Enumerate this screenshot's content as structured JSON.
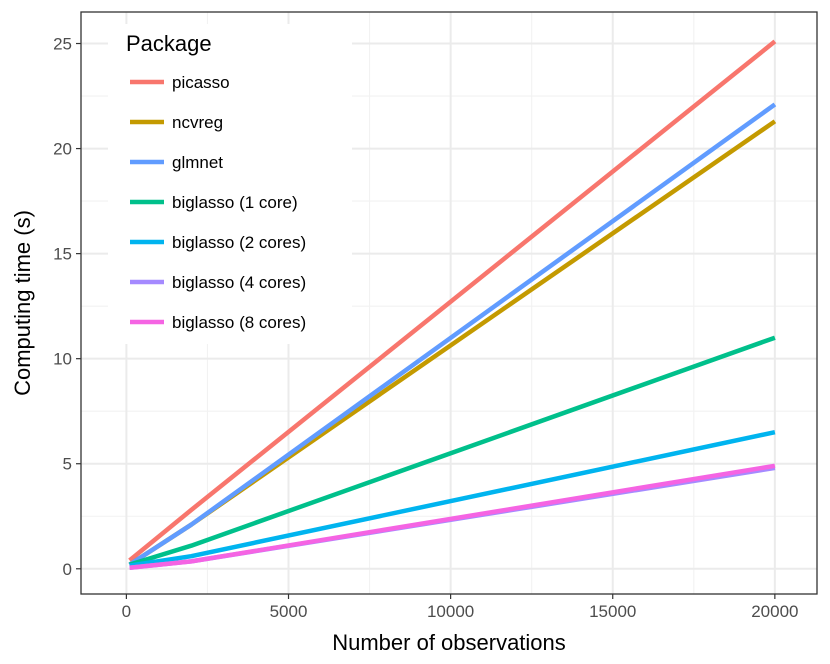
{
  "chart_data": {
    "type": "line",
    "title": "",
    "xlabel": "Number of observations",
    "ylabel": "Computing time (s)",
    "xlim": [
      -1400,
      21300
    ],
    "ylim": [
      -1.2,
      26.5
    ],
    "xticks": [
      0,
      5000,
      10000,
      15000,
      20000
    ],
    "xtick_labels": [
      "0",
      "5000",
      "10000",
      "15000",
      "20000"
    ],
    "yticks": [
      0,
      5,
      10,
      15,
      20,
      25
    ],
    "ytick_labels": [
      "0",
      "5",
      "10",
      "15",
      "20",
      "25"
    ],
    "grid": true,
    "legend": {
      "title": "Package",
      "position": "top-left"
    },
    "series": [
      {
        "name": "picasso",
        "color": "#F8766D",
        "x": [
          100,
          2000,
          20000
        ],
        "y": [
          0.4,
          2.8,
          25.1
        ]
      },
      {
        "name": "ncvreg",
        "color": "#C49A00",
        "x": [
          100,
          2000,
          20000
        ],
        "y": [
          0.2,
          2.1,
          21.3
        ]
      },
      {
        "name": "glmnet",
        "color": "#619CFF",
        "x": [
          100,
          2000,
          20000
        ],
        "y": [
          0.2,
          2.1,
          22.1
        ]
      },
      {
        "name": "biglasso (1 core)",
        "color": "#00C08B",
        "x": [
          100,
          2000,
          20000
        ],
        "y": [
          0.2,
          1.1,
          11.0
        ]
      },
      {
        "name": "biglasso (2 cores)",
        "color": "#00B4EF",
        "x": [
          100,
          2000,
          20000
        ],
        "y": [
          0.15,
          0.6,
          6.5
        ]
      },
      {
        "name": "biglasso (4 cores)",
        "color": "#A58AFF",
        "x": [
          100,
          2000,
          20000
        ],
        "y": [
          0.05,
          0.35,
          4.8
        ]
      },
      {
        "name": "biglasso (8 cores)",
        "color": "#F564E3",
        "x": [
          100,
          2000,
          20000
        ],
        "y": [
          0.05,
          0.35,
          4.9
        ]
      }
    ]
  }
}
